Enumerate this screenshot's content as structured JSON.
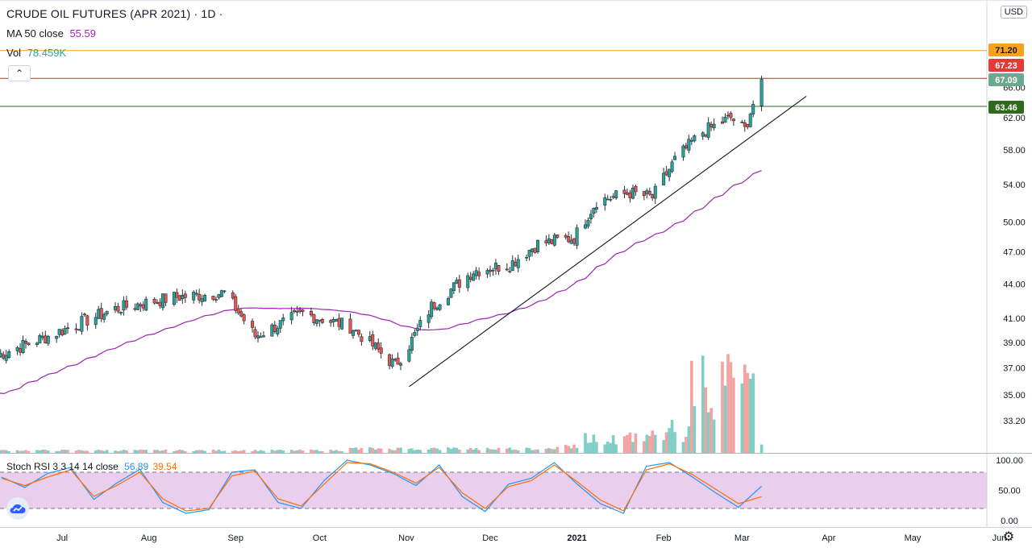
{
  "header": {
    "symbol": "CRUDE OIL FUTURES (APR 2021) · 1D ·",
    "ma_label": "MA 50 close",
    "ma_value": "55.59",
    "vol_label": "Vol",
    "vol_value": "78.459K",
    "currency": "USD",
    "collapse_glyph": "⌃"
  },
  "stoch": {
    "label": "Stoch RSI 3 3 14 14 close",
    "k_value": "56.89",
    "d_value": "39.54",
    "ticks": [
      "100.00",
      "50.00",
      "0.00"
    ]
  },
  "price_tags": [
    {
      "text": "71.20",
      "bg": "#f6a21e",
      "fg": "#131722"
    },
    {
      "text": "67.23",
      "bg": "#e53935",
      "fg": "#ffffff"
    },
    {
      "text": "67.09",
      "bg": "#6aa88f",
      "fg": "#ffffff"
    },
    {
      "text": "63.46",
      "bg": "#2e6b1c",
      "fg": "#ffffff"
    }
  ],
  "colors": {
    "up": "#26a69a",
    "down": "#ef5350",
    "ma": "#9c27b0",
    "vol_up": "#7fcfc7",
    "vol_down": "#f3a4a2",
    "stoch_k": "#2196f3",
    "stoch_d": "#ff6d00",
    "stoch_band": "#e1bee7"
  },
  "chart_data": [
    {
      "type": "candlestick",
      "title": "CRUDE OIL FUTURES (APR 2021) · 1D ·",
      "x_axis": [
        "Jul",
        "Aug",
        "Sep",
        "Oct",
        "Nov",
        "Dec",
        "2021",
        "Feb",
        "Mar",
        "Apr",
        "May",
        "Jun"
      ],
      "y_ticks": [
        33.2,
        35.0,
        37.0,
        39.0,
        41.0,
        44.0,
        47.0,
        50.0,
        54.0,
        58.0,
        62.0,
        66.0
      ],
      "scale": "log",
      "series_anchors": {
        "dates": [
          "Jun 8",
          "Jun 26",
          "Jul 20",
          "Aug 10",
          "Aug 28",
          "Sep 8",
          "Sep 25",
          "Oct 12",
          "Oct 28",
          "Nov 2",
          "Nov 10",
          "Nov 25",
          "Dec 8",
          "Dec 18",
          "Dec 31",
          "Jan 8",
          "Jan 20",
          "Jan 28",
          "Feb 5",
          "Feb 15",
          "Feb 25",
          "Mar 2",
          "Mar 8"
        ],
        "close": [
          38.0,
          39.5,
          41.8,
          42.8,
          43.2,
          39.5,
          41.4,
          40.3,
          37.2,
          38.8,
          42.0,
          45.2,
          45.8,
          47.8,
          48.4,
          52.2,
          53.1,
          52.6,
          56.8,
          60.2,
          62.0,
          60.5,
          67.09
        ]
      },
      "ma50": {
        "name": "MA 50 close",
        "last": 55.59
      },
      "horizontal_lines": [
        71.2,
        67.23,
        63.46
      ],
      "trendline": {
        "from": [
          "Nov 2",
          35.6
        ],
        "to": [
          "Mar 24",
          64.8
        ]
      },
      "volume": {
        "last": "78.459K"
      }
    },
    {
      "type": "line",
      "title": "Stoch RSI 3 3 14 14 close",
      "ylim": [
        0,
        100
      ],
      "bands": [
        20,
        80
      ],
      "series": [
        {
          "values": [
            72,
            55,
            78,
            88,
            35,
            62,
            85,
            30,
            12,
            18,
            80,
            84,
            30,
            20,
            66,
            100,
            92,
            78,
            58,
            92,
            40,
            15,
            60,
            70,
            96,
            60,
            28,
            12,
            90,
            96,
            72,
            46,
            22,
            56.89
          ]
        },
        {
          "values": [
            70,
            58,
            72,
            84,
            40,
            58,
            80,
            36,
            16,
            20,
            74,
            82,
            36,
            24,
            60,
            96,
            94,
            80,
            62,
            88,
            46,
            20,
            56,
            66,
            92,
            64,
            34,
            16,
            84,
            94,
            76,
            52,
            28,
            39.54
          ]
        }
      ]
    }
  ]
}
